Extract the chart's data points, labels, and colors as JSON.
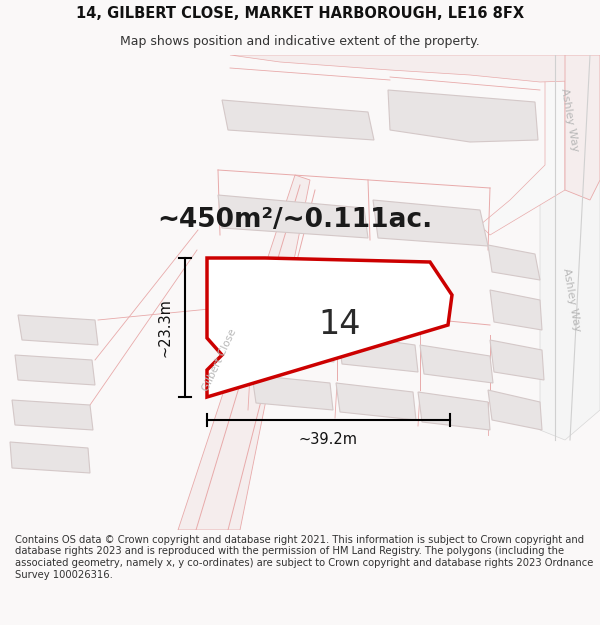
{
  "title_line1": "14, GILBERT CLOSE, MARKET HARBOROUGH, LE16 8FX",
  "title_line2": "Map shows position and indicative extent of the property.",
  "area_label": "~450m²/~0.111ac.",
  "plot_number": "14",
  "dim_vertical": "~23.3m",
  "dim_horizontal": "~39.2m",
  "footer_text": "Contains OS data © Crown copyright and database right 2021. This information is subject to Crown copyright and database rights 2023 and is reproduced with the permission of HM Land Registry. The polygons (including the associated geometry, namely x, y co-ordinates) are subject to Crown copyright and database rights 2023 Ordnance Survey 100026316.",
  "bg_color": "#faf8f8",
  "map_bg": "#faf8f8",
  "plot_fill": "#ffffff",
  "plot_edge": "#cc0000",
  "road_fill": "#f5eded",
  "road_stroke": "#e8aaaa",
  "building_fill": "#e8e4e4",
  "building_stroke": "#d4c8c8",
  "label_color": "#333333",
  "road_label_color": "#b0b0b0",
  "title_fontsize": 10.5,
  "subtitle_fontsize": 9,
  "area_fontsize": 19,
  "plot_num_fontsize": 24,
  "dim_fontsize": 10.5,
  "footer_fontsize": 7.2
}
